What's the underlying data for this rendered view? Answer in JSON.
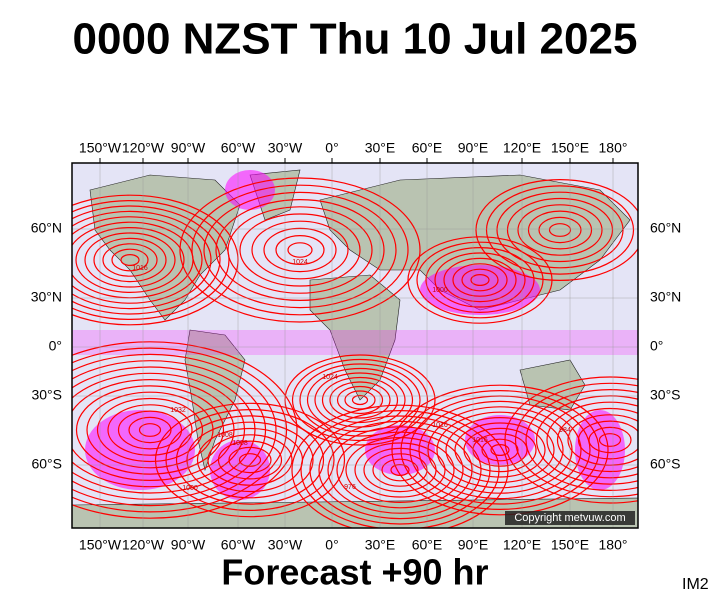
{
  "header": {
    "title": "0000 NZST Thu 10 Jul 2025"
  },
  "map": {
    "lon_labels": [
      "150°W",
      "120°W",
      "90°W",
      "60°W",
      "30°W",
      "0°",
      "30°E",
      "60°E",
      "90°E",
      "120°E",
      "150°E",
      "180°"
    ],
    "lat_labels": [
      "60°N",
      "30°N",
      "0°",
      "30°S",
      "60°S"
    ],
    "isobar_labels": [
      "1016",
      "1024",
      "1008",
      "1000",
      "1032",
      "1016",
      "1024",
      "984",
      "976",
      "1016",
      "1008",
      "1000"
    ],
    "copyright": "Copyright metvuw.com"
  },
  "footer": {
    "forecast": "Forecast +90 hr",
    "code": "IM2"
  }
}
